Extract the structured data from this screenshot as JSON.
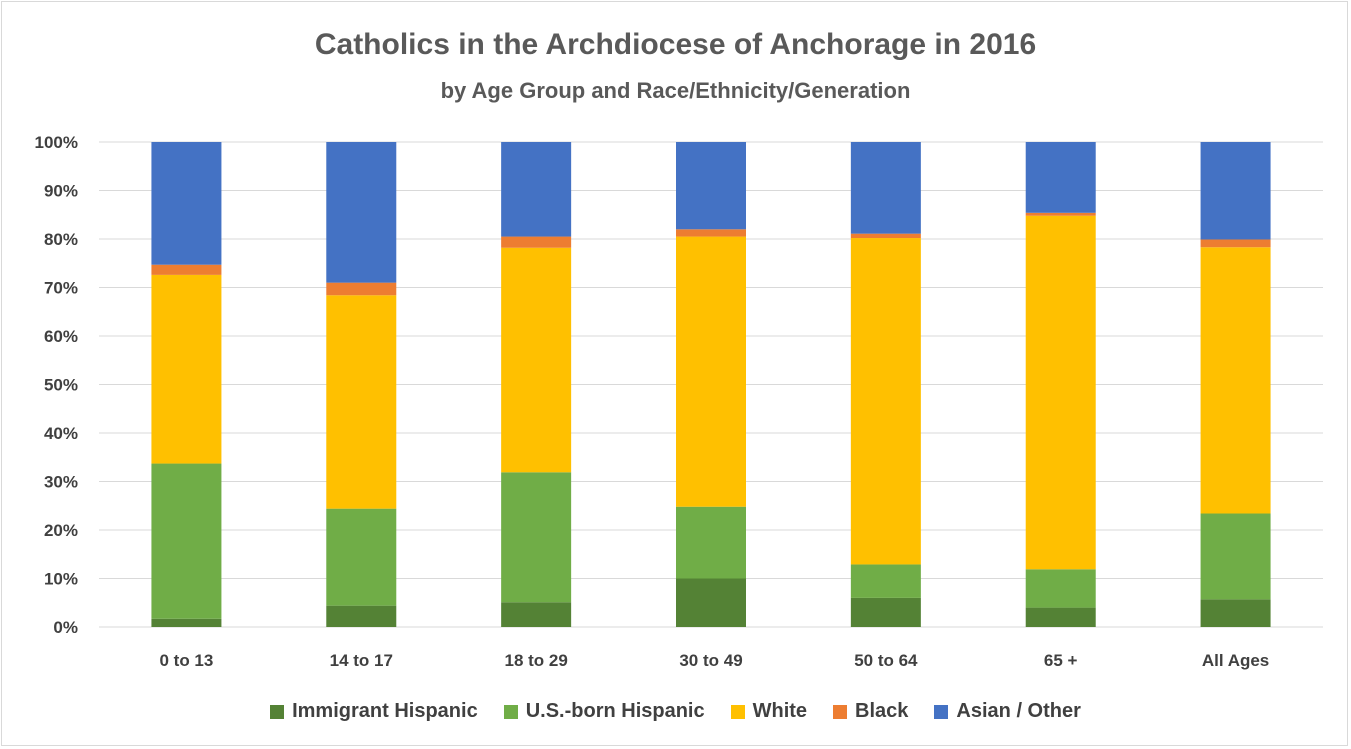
{
  "chart_data": {
    "type": "bar",
    "stacked": true,
    "title": "Catholics in the Archdiocese of Anchorage in 2016",
    "subtitle": "by Age Group and Race/Ethnicity/Generation",
    "categories": [
      "0 to 13",
      "14 to 17",
      "18 to 29",
      "30 to 49",
      "50 to 64",
      "65 +",
      "All Ages"
    ],
    "ylim": [
      0,
      100
    ],
    "yticks": [
      "0%",
      "10%",
      "20%",
      "30%",
      "40%",
      "50%",
      "60%",
      "70%",
      "80%",
      "90%",
      "100%"
    ],
    "grid": true,
    "legend_position": "bottom",
    "series": [
      {
        "name": "Immigrant Hispanic",
        "color": "#548235",
        "values": [
          1.7,
          4.4,
          5.1,
          10.0,
          6.0,
          4.0,
          5.7
        ]
      },
      {
        "name": "U.S.-born Hispanic",
        "color": "#70AD47",
        "values": [
          32.0,
          20.0,
          26.8,
          14.8,
          6.9,
          7.9,
          17.7
        ]
      },
      {
        "name": "White",
        "color": "#FFC000",
        "values": [
          38.9,
          44.0,
          46.3,
          55.7,
          67.3,
          72.9,
          54.9
        ]
      },
      {
        "name": "Black",
        "color": "#ED7D31",
        "values": [
          2.1,
          2.6,
          2.3,
          1.5,
          0.9,
          0.6,
          1.6
        ]
      },
      {
        "name": "Asian / Other",
        "color": "#4472C4",
        "values": [
          25.3,
          29.0,
          19.5,
          18.0,
          18.9,
          14.6,
          20.1
        ]
      }
    ]
  }
}
